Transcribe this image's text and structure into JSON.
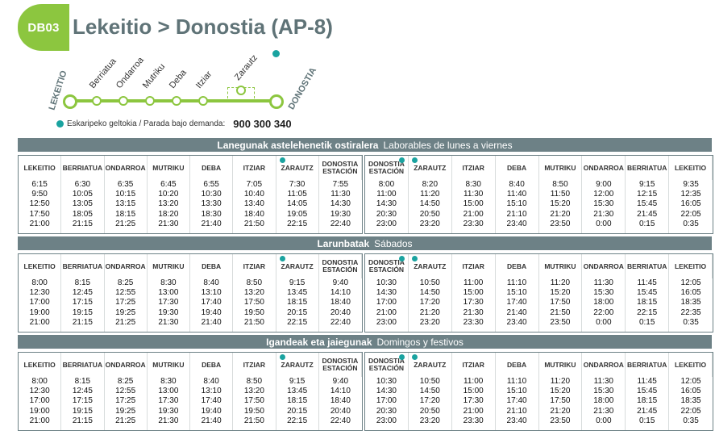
{
  "header": {
    "badge": "DB03",
    "title": "Lekeitio > Donostia (AP-8)",
    "colors": {
      "green": "#8cc63f",
      "slate": "#5f7377",
      "bar": "#6d8186",
      "teal": "#1aa3a0"
    }
  },
  "route": {
    "start": "LEKEITIO",
    "end": "DONOSTIA",
    "stops": [
      "Berriatua",
      "Ondarroa",
      "Mutriku",
      "Deba",
      "Itziar",
      "Zarautz"
    ]
  },
  "note": {
    "label": "Eskaripeko geltokia / Parada bajo demanda:",
    "phone": "900 300 340"
  },
  "columns_out": [
    "LEKEITIO",
    "BERRIATUA",
    "ONDARROA",
    "MUTRIKU",
    "DEBA",
    "ITZIAR",
    "ZARAUTZ",
    "DONOSTIA ESTACIÓN"
  ],
  "columns_back": [
    "DONOSTIA ESTACIÓN",
    "ZARAUTZ",
    "ITZIAR",
    "DEBA",
    "MUTRIKU",
    "ONDARROA",
    "BERRIATUA",
    "LEKEITIO"
  ],
  "sections": [
    {
      "title_eu": "Lanegunak astelehenetik ostiralera",
      "title_es": "Laborables de lunes a viernes",
      "out": [
        [
          "6:15",
          "9:50",
          "12:50",
          "17:50",
          "21:00"
        ],
        [
          "6:30",
          "10:05",
          "13:05",
          "18:05",
          "21:15"
        ],
        [
          "6:35",
          "10:15",
          "13:15",
          "18:15",
          "21:25"
        ],
        [
          "6:45",
          "10:20",
          "13:20",
          "18:20",
          "21:30"
        ],
        [
          "6:55",
          "10:30",
          "13:30",
          "18:30",
          "21:40"
        ],
        [
          "7:05",
          "10:40",
          "13:40",
          "18:40",
          "21:50"
        ],
        [
          "7:30",
          "11:05",
          "14:05",
          "19:05",
          "22:15"
        ],
        [
          "7:55",
          "11:30",
          "14:30",
          "19:30",
          "22:40"
        ]
      ],
      "back": [
        [
          "8:00",
          "11:00",
          "14:30",
          "20:30",
          "23:00"
        ],
        [
          "8:20",
          "11:20",
          "14:50",
          "20:50",
          "23:20"
        ],
        [
          "8:30",
          "11:30",
          "15:00",
          "21:00",
          "23:30"
        ],
        [
          "8:40",
          "11:40",
          "15:10",
          "21:10",
          "23:40"
        ],
        [
          "8:50",
          "11:50",
          "15:20",
          "21:20",
          "23:50"
        ],
        [
          "9:00",
          "12:00",
          "15:30",
          "21:30",
          "0:00"
        ],
        [
          "9:15",
          "12:15",
          "15:45",
          "21:45",
          "0:15"
        ],
        [
          "9:35",
          "12:35",
          "16:05",
          "22:05",
          "0:35"
        ]
      ]
    },
    {
      "title_eu": "Larunbatak",
      "title_es": "Sábados",
      "out": [
        [
          "8:00",
          "12:30",
          "17:00",
          "19:00",
          "21:00"
        ],
        [
          "8:15",
          "12:45",
          "17:15",
          "19:15",
          "21:15"
        ],
        [
          "8:25",
          "12:55",
          "17:25",
          "19:25",
          "21:25"
        ],
        [
          "8:30",
          "13:00",
          "17:30",
          "19:30",
          "21:30"
        ],
        [
          "8:40",
          "13:10",
          "17:40",
          "19:40",
          "21:40"
        ],
        [
          "8:50",
          "13:20",
          "17:50",
          "19:50",
          "21:50"
        ],
        [
          "9:15",
          "13:45",
          "18:15",
          "20:15",
          "22:15"
        ],
        [
          "9:40",
          "14:10",
          "18:40",
          "20:40",
          "22:40"
        ]
      ],
      "back": [
        [
          "10:30",
          "14:30",
          "17:00",
          "21:00",
          "23:00"
        ],
        [
          "10:50",
          "14:50",
          "17:20",
          "21:20",
          "23:20"
        ],
        [
          "11:00",
          "15:00",
          "17:30",
          "21:30",
          "23:30"
        ],
        [
          "11:10",
          "15:10",
          "17:40",
          "21:40",
          "23:40"
        ],
        [
          "11:20",
          "15:20",
          "17:50",
          "21:50",
          "23:50"
        ],
        [
          "11:30",
          "15:30",
          "18:00",
          "22:00",
          "0:00"
        ],
        [
          "11:45",
          "15:45",
          "18:15",
          "22:15",
          "0:15"
        ],
        [
          "12:05",
          "16:05",
          "18:35",
          "22:35",
          "0:35"
        ]
      ]
    },
    {
      "title_eu": "Igandeak eta jaiegunak",
      "title_es": "Domingos y festivos",
      "out": [
        [
          "8:00",
          "12:30",
          "17:00",
          "19:00",
          "21:00"
        ],
        [
          "8:15",
          "12:45",
          "17:15",
          "19:15",
          "21:15"
        ],
        [
          "8:25",
          "12:55",
          "17:25",
          "19:25",
          "21:25"
        ],
        [
          "8:30",
          "13:00",
          "17:30",
          "19:30",
          "21:30"
        ],
        [
          "8:40",
          "13:10",
          "17:40",
          "19:40",
          "21:40"
        ],
        [
          "8:50",
          "13:20",
          "17:50",
          "19:50",
          "21:50"
        ],
        [
          "9:15",
          "13:45",
          "18:15",
          "20:15",
          "22:15"
        ],
        [
          "9:40",
          "14:10",
          "18:40",
          "20:40",
          "22:40"
        ]
      ],
      "back": [
        [
          "10:30",
          "14:30",
          "17:00",
          "20:30",
          "23:00"
        ],
        [
          "10:50",
          "14:50",
          "17:20",
          "20:50",
          "23:20"
        ],
        [
          "11:00",
          "15:00",
          "17:30",
          "21:00",
          "23:30"
        ],
        [
          "11:10",
          "15:10",
          "17:40",
          "21:10",
          "23:40"
        ],
        [
          "11:20",
          "15:20",
          "17:50",
          "21:20",
          "23:50"
        ],
        [
          "11:30",
          "15:30",
          "18:00",
          "21:30",
          "0:00"
        ],
        [
          "11:45",
          "15:45",
          "18:15",
          "21:45",
          "0:15"
        ],
        [
          "12:05",
          "16:05",
          "18:35",
          "22:05",
          "0:35"
        ]
      ]
    }
  ]
}
